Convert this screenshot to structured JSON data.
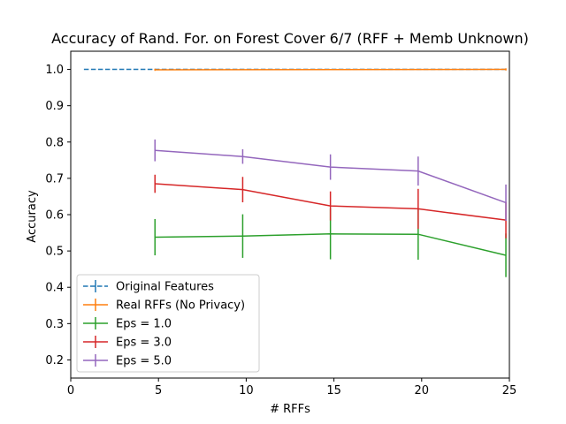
{
  "chart_data": {
    "type": "line",
    "title": "Accuracy of Rand. For. on Forest Cover 6/7 (RFF + Memb Unknown)",
    "xlabel": "# RFFs",
    "ylabel": "Accuracy",
    "xlim": [
      0,
      25
    ],
    "ylim": [
      0.15,
      1.05
    ],
    "xticks": [
      0,
      5,
      10,
      15,
      20,
      25
    ],
    "yticks": [
      0.2,
      0.3,
      0.4,
      0.5,
      0.6,
      0.7,
      0.8,
      0.9,
      1.0
    ],
    "xtick_labels": [
      "0",
      "5",
      "10",
      "15",
      "20",
      "25"
    ],
    "ytick_labels": [
      "0.2",
      "0.3",
      "0.4",
      "0.5",
      "0.6",
      "0.7",
      "0.8",
      "0.9",
      "1.0"
    ],
    "grid": false,
    "legend_position": "lower-left",
    "series": [
      {
        "name": "Original Features",
        "color": "#1f77b4",
        "dashed": true,
        "x": [
          0.75,
          24.8
        ],
        "y": [
          1.0,
          1.0
        ],
        "err": [
          0.0,
          0.0
        ]
      },
      {
        "name": "Real RFFs (No Privacy)",
        "color": "#ff7f0e",
        "dashed": false,
        "x": [
          4.8,
          24.8
        ],
        "y": [
          0.999,
          1.0
        ],
        "err": [
          0.003,
          0.003
        ]
      },
      {
        "name": "Eps = 1.0",
        "color": "#2ca02c",
        "dashed": false,
        "x": [
          4.8,
          9.8,
          14.8,
          19.8,
          24.8
        ],
        "y": [
          0.538,
          0.541,
          0.547,
          0.546,
          0.488
        ],
        "err": [
          0.05,
          0.06,
          0.07,
          0.07,
          0.06
        ]
      },
      {
        "name": "Eps = 3.0",
        "color": "#d62728",
        "dashed": false,
        "x": [
          4.8,
          9.8,
          14.8,
          19.8,
          24.8
        ],
        "y": [
          0.685,
          0.669,
          0.624,
          0.616,
          0.585
        ],
        "err": [
          0.025,
          0.035,
          0.04,
          0.055,
          0.05
        ]
      },
      {
        "name": "Eps = 5.0",
        "color": "#9467bd",
        "dashed": false,
        "x": [
          4.8,
          9.8,
          14.8,
          19.8,
          24.8
        ],
        "y": [
          0.777,
          0.76,
          0.731,
          0.72,
          0.633
        ],
        "err": [
          0.03,
          0.02,
          0.035,
          0.04,
          0.05
        ]
      }
    ]
  }
}
